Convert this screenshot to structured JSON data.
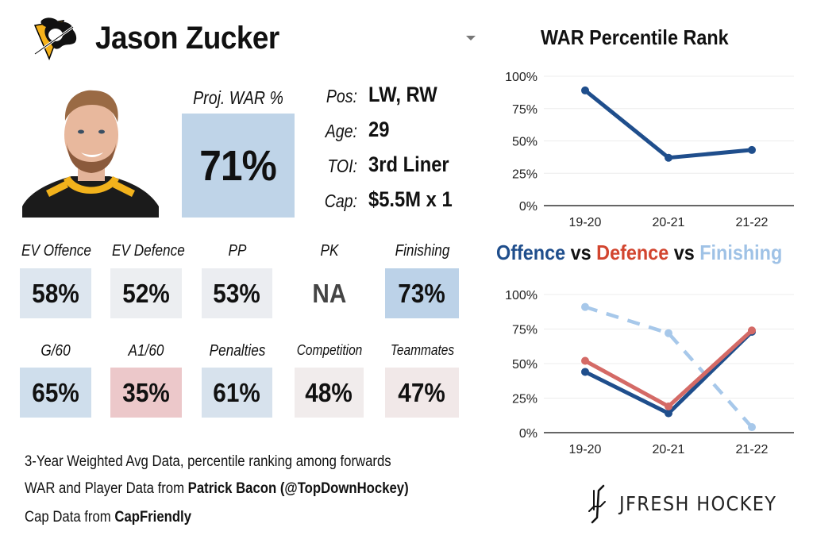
{
  "header": {
    "team_logo_icon": "pittsburgh-penguins-logo",
    "player_name": "Jason Zucker",
    "dropdown_icon": "caret-down-icon"
  },
  "player": {
    "photo_alt": "Jason Zucker headshot",
    "proj_war_label": "Proj. WAR %",
    "proj_war_value": "71%",
    "proj_war_color": "#bfd4e8",
    "info": [
      {
        "label": "Pos:",
        "value": "LW, RW"
      },
      {
        "label": "Age:",
        "value": "29"
      },
      {
        "label": "TOI:",
        "value": "3rd Liner"
      },
      {
        "label": "Cap:",
        "value": "$5.5M x 1"
      }
    ]
  },
  "tiles": [
    {
      "label": "EV Offence",
      "value": "58%",
      "color": "#dde6ef"
    },
    {
      "label": "EV Defence",
      "value": "52%",
      "color": "#eceef1"
    },
    {
      "label": "PP",
      "value": "53%",
      "color": "#ebedf1"
    },
    {
      "label": "PK",
      "value": "NA",
      "color": "#ffffff"
    },
    {
      "label": "Finishing",
      "value": "73%",
      "color": "#bcd2e8"
    },
    {
      "label": "G/60",
      "value": "65%",
      "color": "#cfdeec"
    },
    {
      "label": "A1/60",
      "value": "35%",
      "color": "#ecc8ca"
    },
    {
      "label": "Penalties",
      "value": "61%",
      "color": "#d7e2ed"
    },
    {
      "label": "Competition",
      "value": "48%",
      "color": "#f1ecec"
    },
    {
      "label": "Teammates",
      "value": "47%",
      "color": "#f1e8e8"
    }
  ],
  "notes": {
    "line1": "3-Year Weighted Avg Data, percentile ranking among forwards",
    "line2_prefix": "WAR and Player Data from ",
    "line2_bold": "Patrick Bacon (@TopDownHockey)",
    "line3_prefix": "Cap Data from ",
    "line3_bold": "CapFriendly"
  },
  "brand": {
    "icon": "jfresh-hockey-sticks-logo",
    "name": "JFRESH HOCKEY"
  },
  "chart_data": [
    {
      "type": "line",
      "title": "WAR Percentile Rank",
      "categories": [
        "19-20",
        "20-21",
        "21-22"
      ],
      "series": [
        {
          "name": "WAR",
          "values": [
            89,
            37,
            43
          ],
          "color": "#1f4e8c",
          "dashed": false
        }
      ],
      "ylim": [
        0,
        100
      ],
      "yticks": [
        0,
        25,
        50,
        75,
        100
      ],
      "ytick_labels": [
        "0%",
        "25%",
        "50%",
        "75%",
        "100%"
      ],
      "grid": true,
      "xlabel": "",
      "ylabel": ""
    },
    {
      "type": "line",
      "title_parts": [
        {
          "text": "Offence",
          "color": "#1f4e8c"
        },
        {
          "text": " vs ",
          "color": "#111111"
        },
        {
          "text": "Defence",
          "color": "#d2452f"
        },
        {
          "text": " vs ",
          "color": "#111111"
        },
        {
          "text": "Finishing",
          "color": "#9fc2e6"
        }
      ],
      "categories": [
        "19-20",
        "20-21",
        "21-22"
      ],
      "series": [
        {
          "name": "Finishing",
          "values": [
            91,
            72,
            4
          ],
          "color": "#a7c8ea",
          "dashed": true
        },
        {
          "name": "Offence",
          "values": [
            44,
            14,
            73
          ],
          "color": "#1f4e8c",
          "dashed": false
        },
        {
          "name": "Defence",
          "values": [
            52,
            19,
            74
          ],
          "color": "#d46a66",
          "dashed": false
        }
      ],
      "ylim": [
        0,
        100
      ],
      "yticks": [
        0,
        25,
        50,
        75,
        100
      ],
      "ytick_labels": [
        "0%",
        "25%",
        "50%",
        "75%",
        "100%"
      ],
      "grid": true,
      "xlabel": "",
      "ylabel": ""
    }
  ]
}
